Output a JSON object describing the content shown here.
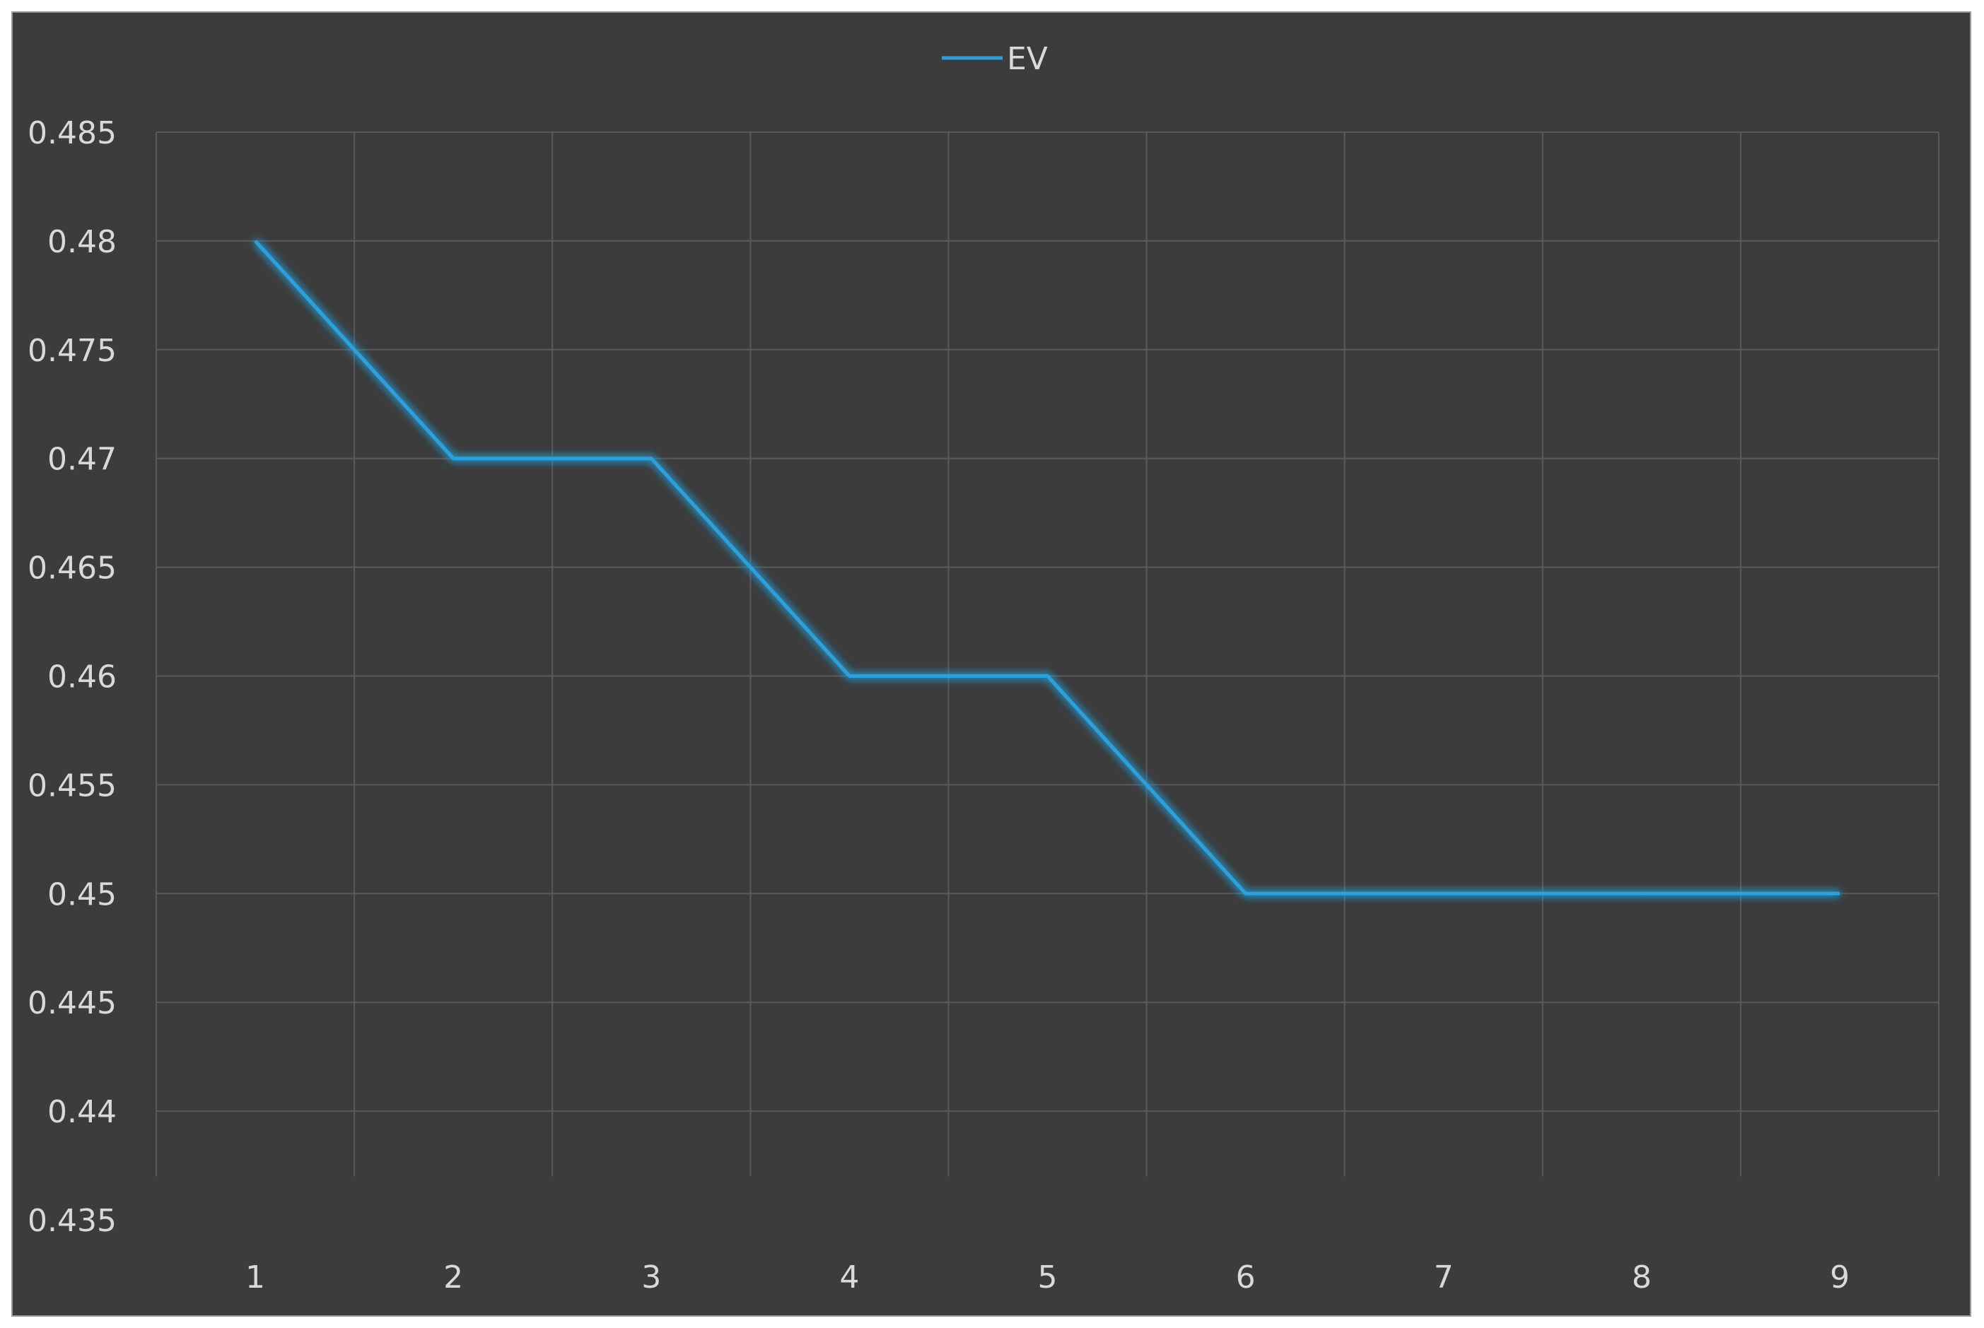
{
  "chart_data": {
    "type": "line",
    "title": "",
    "xlabel": "",
    "ylabel": "",
    "categories": [
      "1",
      "2",
      "3",
      "4",
      "5",
      "6",
      "7",
      "8",
      "9"
    ],
    "series": [
      {
        "name": "EV",
        "values": [
          0.48,
          0.47,
          0.47,
          0.46,
          0.46,
          0.45,
          0.45,
          0.45,
          0.45
        ],
        "color": "#2aa0dc"
      }
    ],
    "ylim": [
      0.435,
      0.485
    ],
    "yticks": [
      "0.435",
      "0.44",
      "0.445",
      "0.45",
      "0.455",
      "0.46",
      "0.465",
      "0.47",
      "0.475",
      "0.48",
      "0.485"
    ],
    "grid": true,
    "legend": "top-center",
    "background_color": "#3c3c3c",
    "grid_color": "#5a5a5a",
    "text_color": "#d9d9d9"
  }
}
